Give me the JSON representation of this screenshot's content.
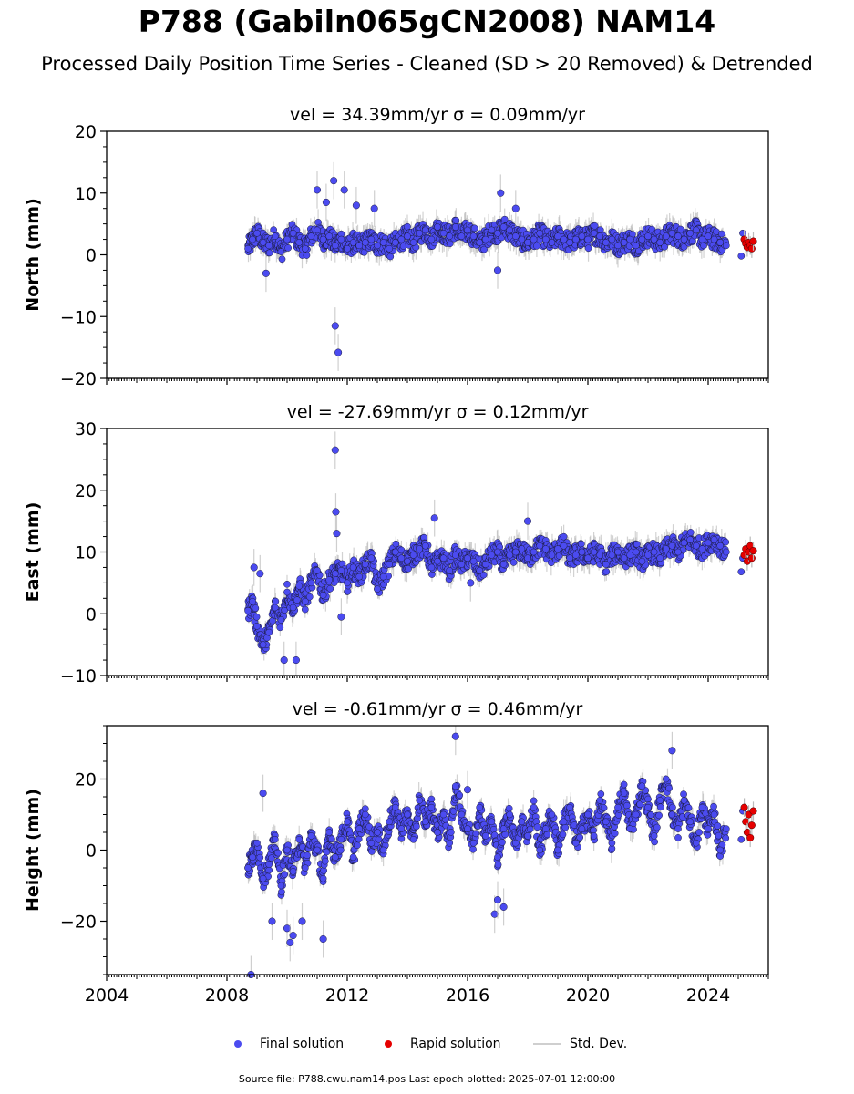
{
  "title": "P788 (Gabiln065gCN2008) NAM14",
  "subtitle": "Processed Daily Position Time Series - Cleaned (SD > 20 Removed) & Detrended",
  "footer": "Source file: P788.cwu.nam14.pos  Last epoch plotted: 2025-07-01 12:00:00",
  "legend": {
    "final": "Final solution",
    "rapid": "Rapid solution",
    "std": "Std. Dev."
  },
  "colors": {
    "final": "#4b4bf0",
    "rapid": "#e60000",
    "std": "#bbbbbb"
  },
  "chart_data": [
    {
      "type": "scatter",
      "panel": "north",
      "title": "vel = 34.39mm/yr   σ = 0.09mm/yr",
      "ylabel": "North (mm)",
      "xlim": [
        2004,
        2026
      ],
      "ylim": [
        -20,
        20
      ],
      "yticks": [
        -20,
        -10,
        0,
        10,
        20
      ],
      "final_series": {
        "name": "Final solution",
        "x": [
          2008.7,
          2008.85,
          2009.0,
          2009.2,
          2009.4,
          2009.6,
          2009.8,
          2010.0,
          2010.2,
          2010.4,
          2010.6,
          2010.8,
          2011.0,
          2011.2,
          2011.4,
          2011.6,
          2011.8,
          2012.0,
          2012.2,
          2012.4,
          2012.6,
          2012.8,
          2013.0,
          2013.2,
          2013.4,
          2013.6,
          2013.8,
          2014.0,
          2014.2,
          2014.4,
          2014.6,
          2014.8,
          2015.0,
          2015.2,
          2015.4,
          2015.6,
          2015.8,
          2016.0,
          2016.2,
          2016.4,
          2016.6,
          2016.8,
          2017.0,
          2017.2,
          2017.4,
          2017.6,
          2017.8,
          2018.0,
          2018.2,
          2018.4,
          2018.6,
          2018.8,
          2019.0,
          2019.2,
          2019.4,
          2019.6,
          2019.8,
          2020.0,
          2020.2,
          2020.4,
          2020.6,
          2020.8,
          2021.0,
          2021.2,
          2021.4,
          2021.6,
          2021.8,
          2022.0,
          2022.2,
          2022.4,
          2022.6,
          2022.8,
          2023.0,
          2023.2,
          2023.4,
          2023.6,
          2023.8,
          2024.0,
          2024.2,
          2024.4,
          2024.6
        ],
        "y": [
          1.0,
          2.5,
          3.5,
          2.0,
          1.5,
          3.0,
          0.5,
          2.5,
          3.5,
          2.0,
          1.0,
          3.0,
          4.0,
          2.5,
          3.0,
          1.5,
          2.5,
          1.0,
          2.0,
          1.5,
          2.0,
          2.5,
          1.5,
          2.0,
          1.0,
          2.0,
          2.5,
          3.0,
          2.0,
          3.5,
          4.0,
          2.5,
          4.5,
          3.5,
          3.0,
          4.5,
          3.0,
          4.0,
          3.0,
          2.0,
          2.5,
          4.0,
          3.5,
          4.5,
          4.0,
          3.0,
          2.5,
          2.0,
          2.5,
          3.5,
          2.5,
          2.0,
          3.0,
          2.5,
          2.0,
          2.5,
          3.0,
          2.5,
          3.5,
          3.0,
          2.0,
          2.5,
          1.5,
          2.0,
          2.5,
          1.5,
          2.5,
          3.0,
          2.5,
          2.0,
          3.0,
          3.5,
          3.0,
          2.5,
          3.5,
          4.0,
          2.5,
          3.0,
          2.5,
          2.0,
          1.5
        ],
        "outliers_x": [
          2009.3,
          2011.0,
          2011.3,
          2011.55,
          2011.6,
          2011.7,
          2011.9,
          2012.3,
          2012.9,
          2017.0,
          2017.1,
          2017.6
        ],
        "outliers_y": [
          -3.0,
          10.5,
          8.5,
          12.0,
          -11.5,
          -15.8,
          10.5,
          8.0,
          7.5,
          -2.5,
          10.0,
          7.5
        ]
      },
      "rapid_series": {
        "name": "Rapid solution",
        "x": [
          2025.2,
          2025.25,
          2025.3,
          2025.35,
          2025.4,
          2025.45,
          2025.5
        ],
        "y": [
          2.5,
          1.8,
          1.2,
          2.0,
          1.5,
          1.0,
          2.2
        ]
      },
      "final_scatter_x": [
        2025.1,
        2025.15
      ],
      "final_scatter_y": [
        -0.2,
        3.5
      ]
    },
    {
      "type": "scatter",
      "panel": "east",
      "title": "vel = -27.69mm/yr   σ = 0.12mm/yr",
      "ylabel": "East (mm)",
      "xlim": [
        2004,
        2026
      ],
      "ylim": [
        -10,
        30
      ],
      "yticks": [
        -10,
        0,
        10,
        20,
        30
      ],
      "final_series": {
        "name": "Final solution",
        "x": [
          2008.7,
          2008.85,
          2009.0,
          2009.2,
          2009.4,
          2009.6,
          2009.8,
          2010.0,
          2010.2,
          2010.4,
          2010.6,
          2010.8,
          2011.0,
          2011.2,
          2011.4,
          2011.6,
          2011.8,
          2012.0,
          2012.2,
          2012.4,
          2012.6,
          2012.8,
          2013.0,
          2013.2,
          2013.4,
          2013.6,
          2013.8,
          2014.0,
          2014.2,
          2014.4,
          2014.6,
          2014.8,
          2015.0,
          2015.2,
          2015.4,
          2015.6,
          2015.8,
          2016.0,
          2016.2,
          2016.4,
          2016.6,
          2016.8,
          2017.0,
          2017.2,
          2017.4,
          2017.6,
          2017.8,
          2018.0,
          2018.2,
          2018.4,
          2018.6,
          2018.8,
          2019.0,
          2019.2,
          2019.4,
          2019.6,
          2019.8,
          2020.0,
          2020.2,
          2020.4,
          2020.6,
          2020.8,
          2021.0,
          2021.2,
          2021.4,
          2021.6,
          2021.8,
          2022.0,
          2022.2,
          2022.4,
          2022.6,
          2022.8,
          2023.0,
          2023.2,
          2023.4,
          2023.6,
          2023.8,
          2024.0,
          2024.2,
          2024.4,
          2024.6
        ],
        "y": [
          0.5,
          2.0,
          -2.0,
          -5.0,
          -3.0,
          1.0,
          -1.0,
          3.5,
          1.0,
          4.5,
          2.0,
          5.0,
          7.0,
          3.0,
          5.5,
          6.5,
          7.0,
          5.0,
          7.5,
          6.0,
          8.0,
          9.0,
          4.0,
          6.0,
          8.0,
          10.0,
          9.0,
          8.5,
          9.5,
          10.5,
          11.0,
          7.5,
          8.5,
          9.0,
          7.0,
          9.5,
          8.0,
          9.0,
          8.5,
          7.0,
          8.0,
          9.5,
          10.0,
          8.0,
          9.5,
          10.0,
          10.5,
          9.0,
          10.0,
          11.0,
          10.5,
          9.5,
          10.5,
          11.0,
          9.0,
          9.5,
          10.0,
          9.0,
          10.0,
          9.5,
          8.0,
          9.5,
          10.0,
          9.0,
          9.5,
          10.0,
          8.5,
          9.5,
          10.0,
          9.0,
          10.5,
          11.0,
          10.0,
          11.5,
          12.0,
          11.0,
          10.5,
          11.5,
          12.0,
          11.0,
          10.0
        ],
        "outliers_x": [
          2008.9,
          2009.1,
          2009.9,
          2010.3,
          2011.6,
          2011.62,
          2011.65,
          2011.8,
          2014.9,
          2016.1,
          2018.0
        ],
        "outliers_y": [
          7.5,
          6.5,
          -7.5,
          -7.5,
          26.5,
          16.5,
          13.0,
          -0.5,
          15.5,
          5.0,
          15.0
        ]
      },
      "rapid_series": {
        "name": "Rapid solution",
        "x": [
          2025.2,
          2025.25,
          2025.3,
          2025.35,
          2025.4,
          2025.45,
          2025.5
        ],
        "y": [
          9.5,
          10.5,
          8.5,
          10.0,
          11.0,
          9.0,
          10.2
        ]
      },
      "final_scatter_x": [
        2025.1,
        2025.15
      ],
      "final_scatter_y": [
        6.8,
        9.0
      ]
    },
    {
      "type": "scatter",
      "panel": "height",
      "title": "vel = -0.61mm/yr   σ = 0.46mm/yr",
      "ylabel": "Height (mm)",
      "xlim": [
        2004,
        2026
      ],
      "ylim": [
        -35,
        35
      ],
      "yticks": [
        -20,
        0,
        20
      ],
      "xticks": [
        2004,
        2008,
        2012,
        2016,
        2020,
        2024
      ],
      "final_series": {
        "name": "Final solution",
        "x": [
          2008.7,
          2008.85,
          2009.0,
          2009.2,
          2009.4,
          2009.6,
          2009.8,
          2010.0,
          2010.2,
          2010.4,
          2010.6,
          2010.8,
          2011.0,
          2011.2,
          2011.4,
          2011.6,
          2011.8,
          2012.0,
          2012.2,
          2012.4,
          2012.6,
          2012.8,
          2013.0,
          2013.2,
          2013.4,
          2013.6,
          2013.8,
          2014.0,
          2014.2,
          2014.4,
          2014.6,
          2014.8,
          2015.0,
          2015.2,
          2015.4,
          2015.6,
          2015.8,
          2016.0,
          2016.2,
          2016.4,
          2016.6,
          2016.8,
          2017.0,
          2017.2,
          2017.4,
          2017.6,
          2017.8,
          2018.0,
          2018.2,
          2018.4,
          2018.6,
          2018.8,
          2019.0,
          2019.2,
          2019.4,
          2019.6,
          2019.8,
          2020.0,
          2020.2,
          2020.4,
          2020.6,
          2020.8,
          2021.0,
          2021.2,
          2021.4,
          2021.6,
          2021.8,
          2022.0,
          2022.2,
          2022.4,
          2022.6,
          2022.8,
          2023.0,
          2023.2,
          2023.4,
          2023.6,
          2023.8,
          2024.0,
          2024.2,
          2024.4,
          2024.6
        ],
        "y": [
          -5.0,
          -2.0,
          2.0,
          -8.0,
          -4.0,
          3.0,
          -10.0,
          0.0,
          -6.0,
          3.0,
          -5.0,
          4.0,
          0.0,
          -8.0,
          5.0,
          -2.0,
          3.0,
          8.0,
          -2.0,
          6.0,
          10.0,
          2.0,
          5.0,
          0.0,
          8.0,
          12.0,
          6.0,
          10.0,
          3.0,
          14.0,
          8.0,
          12.0,
          5.0,
          10.0,
          2.0,
          18.0,
          10.0,
          6.0,
          2.0,
          12.0,
          4.0,
          8.0,
          -2.0,
          6.0,
          10.0,
          2.0,
          8.0,
          4.0,
          12.0,
          0.0,
          6.0,
          10.0,
          0.0,
          8.0,
          12.0,
          2.0,
          6.0,
          10.0,
          4.0,
          14.0,
          8.0,
          2.0,
          12.0,
          16.0,
          6.0,
          10.0,
          18.0,
          12.0,
          4.0,
          14.0,
          20.0,
          10.0,
          6.0,
          14.0,
          8.0,
          2.0,
          12.0,
          6.0,
          10.0,
          0.0,
          6.0
        ],
        "outliers_x": [
          2008.8,
          2009.2,
          2009.5,
          2010.0,
          2010.1,
          2010.2,
          2010.5,
          2011.2,
          2015.6,
          2016.0,
          2016.9,
          2017.0,
          2017.2,
          2022.8
        ],
        "outliers_y": [
          -35.0,
          16.0,
          -20.0,
          -22.0,
          -26.0,
          -24.0,
          -20.0,
          -25.0,
          32.0,
          17.0,
          -18.0,
          -14.0,
          -16.0,
          28.0
        ]
      },
      "rapid_series": {
        "name": "Rapid solution",
        "x": [
          2025.2,
          2025.25,
          2025.3,
          2025.35,
          2025.4,
          2025.45,
          2025.5
        ],
        "y": [
          12.0,
          8.0,
          5.0,
          10.0,
          3.5,
          7.0,
          11.0
        ]
      },
      "final_scatter_x": [
        2025.1,
        2025.15
      ],
      "final_scatter_y": [
        3.0,
        11.0
      ]
    }
  ]
}
